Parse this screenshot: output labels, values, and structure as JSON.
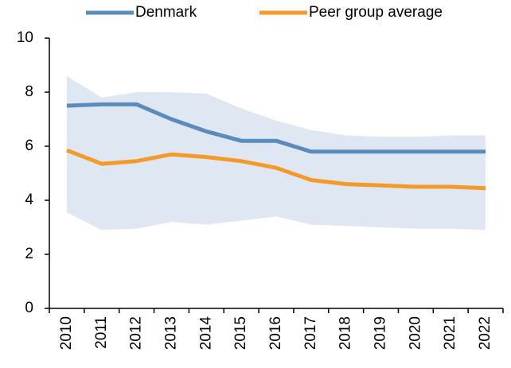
{
  "chart_data": {
    "type": "line",
    "categories": [
      "2010",
      "2011",
      "2012",
      "2013",
      "2014",
      "2015",
      "2016",
      "2017",
      "2018",
      "2019",
      "2020",
      "2021",
      "2022"
    ],
    "series": [
      {
        "name": "Denmark",
        "color": "#5b8bbd",
        "values": [
          7.5,
          7.55,
          7.55,
          7.0,
          6.55,
          6.2,
          6.2,
          5.8,
          5.8,
          5.8,
          5.8,
          5.8,
          5.8
        ]
      },
      {
        "name": "Peer group average",
        "color": "#f39a2b",
        "values": [
          5.85,
          5.35,
          5.45,
          5.7,
          5.6,
          5.45,
          5.2,
          4.75,
          4.6,
          4.55,
          4.5,
          4.5,
          4.45
        ]
      }
    ],
    "band": {
      "color": "#dfe7f2",
      "upper": [
        8.6,
        7.8,
        8.0,
        8.0,
        7.95,
        7.4,
        6.95,
        6.6,
        6.4,
        6.35,
        6.35,
        6.4,
        6.4
      ],
      "lower": [
        3.55,
        2.9,
        2.95,
        3.2,
        3.1,
        3.25,
        3.4,
        3.1,
        3.05,
        3.0,
        2.95,
        2.95,
        2.9
      ]
    },
    "ylim": [
      0,
      10
    ],
    "yticks": [
      0,
      2,
      4,
      6,
      8,
      10
    ],
    "grid": false
  }
}
